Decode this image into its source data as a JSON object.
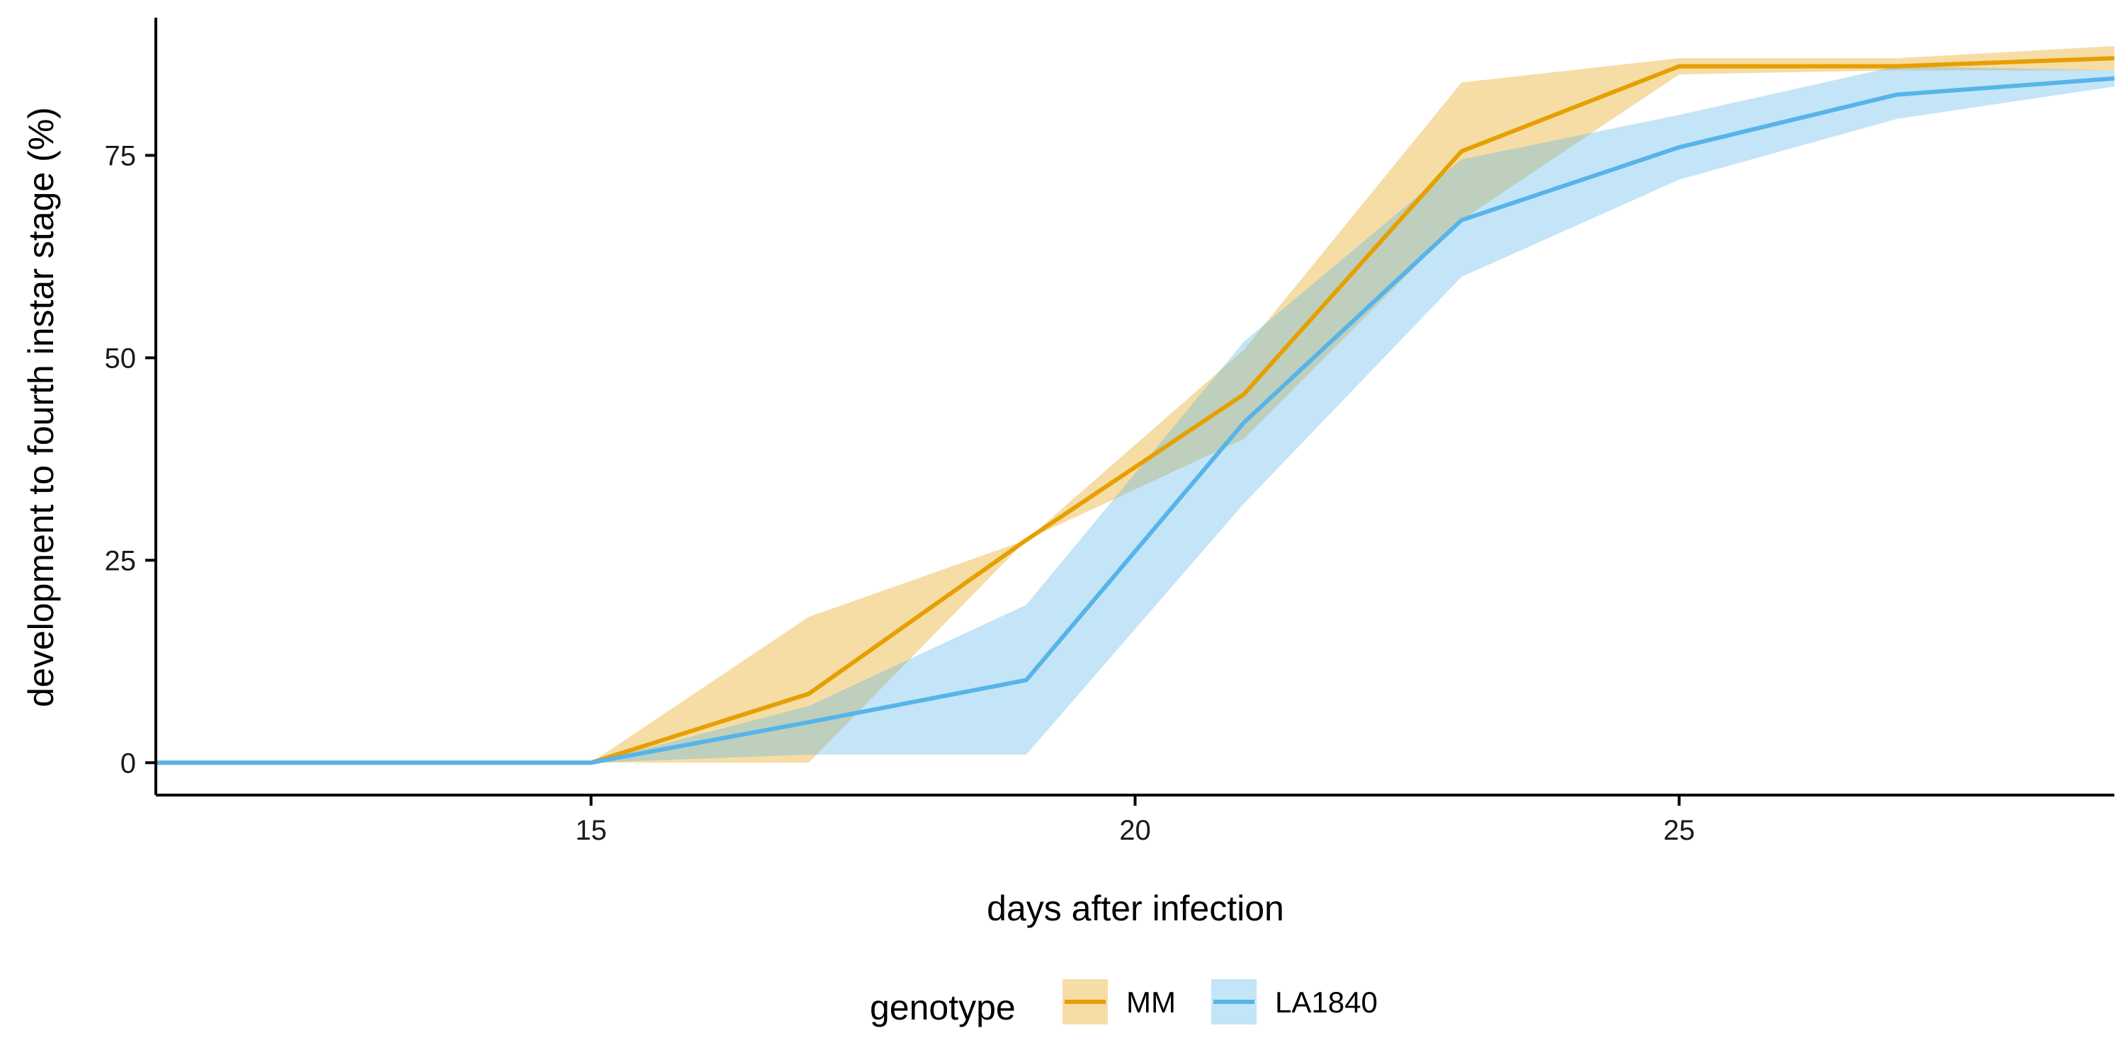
{
  "chart_data": {
    "type": "line",
    "xlabel": "days after infection",
    "ylabel": "development to fourth instar stage (%)",
    "xlim": [
      11,
      29
    ],
    "ylim": [
      -4,
      92
    ],
    "x_ticks": [
      15,
      20,
      25
    ],
    "y_ticks": [
      0,
      25,
      50,
      75
    ],
    "grid": false,
    "legend": {
      "title": "genotype",
      "placement": "bottom"
    },
    "series": [
      {
        "name": "MM",
        "color": "#E69F00",
        "x": [
          11,
          15,
          17,
          19,
          21,
          23,
          25,
          27,
          29
        ],
        "y": [
          0,
          0,
          8.5,
          27.5,
          45.5,
          75.5,
          86,
          86,
          87
        ],
        "lower": [
          0,
          0,
          0,
          27.5,
          40,
          67,
          85,
          85.5,
          85.5
        ],
        "upper": [
          0,
          0,
          18,
          27.5,
          51,
          84,
          87,
          87,
          88.5
        ]
      },
      {
        "name": "LA1840",
        "color": "#56B4E9",
        "x": [
          11,
          15,
          17,
          19,
          21,
          23,
          25,
          27,
          29
        ],
        "y": [
          0,
          0,
          5,
          10.2,
          42,
          67,
          76,
          82.5,
          84.5
        ],
        "lower": [
          0,
          0,
          1,
          1,
          32,
          60,
          72,
          79.5,
          83.5
        ],
        "upper": [
          0,
          0,
          7,
          19.5,
          52,
          74.5,
          80,
          86,
          85.5
        ]
      }
    ]
  }
}
